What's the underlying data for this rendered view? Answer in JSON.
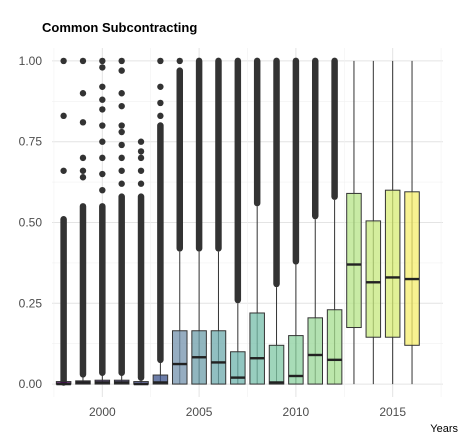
{
  "chart_data": {
    "type": "boxplot",
    "title": "Common Subcontracting",
    "xlabel": "Years",
    "ylabel": "",
    "xlim": [
      1997.4,
      2017.6
    ],
    "ylim": [
      -0.04,
      1.04
    ],
    "x_ticks": [
      2000,
      2005,
      2010,
      2015
    ],
    "y_ticks": [
      0.0,
      0.25,
      0.5,
      0.75,
      1.0
    ],
    "y_tick_labels": [
      "0.00",
      "0.25",
      "0.50",
      "0.75",
      "1.00"
    ],
    "grid": true,
    "legend": "none",
    "box_border_color": "#333333",
    "boxes": [
      {
        "x": 1998,
        "q1": 0.0,
        "median": 0.0,
        "q3": 0.0,
        "whisker_low": 0.0,
        "whisker_high": 0.0,
        "fill": "#440154",
        "outlier_dense": [
          0.005,
          0.51
        ],
        "outliers": [
          0.66,
          0.83,
          1.0
        ]
      },
      {
        "x": 1999,
        "q1": 0.0,
        "median": 0.005,
        "q3": 0.01,
        "whisker_low": 0.0,
        "whisker_high": 0.025,
        "fill": "#46136a",
        "outlier_dense": [
          0.03,
          0.55
        ],
        "outliers": [
          0.64,
          0.66,
          0.7,
          0.81,
          0.9,
          1.0
        ]
      },
      {
        "x": 2000,
        "q1": 0.0,
        "median": 0.005,
        "q3": 0.012,
        "whisker_low": 0.0,
        "whisker_high": 0.03,
        "fill": "#472878",
        "outlier_dense": [
          0.035,
          0.55
        ],
        "outliers": [
          0.6,
          0.65,
          0.7,
          0.75,
          0.8,
          0.85,
          0.88,
          0.92,
          0.98,
          1.0
        ]
      },
      {
        "x": 2001,
        "q1": 0.0,
        "median": 0.005,
        "q3": 0.012,
        "whisker_low": 0.0,
        "whisker_high": 0.03,
        "fill": "#433880",
        "outlier_dense": [
          0.035,
          0.58
        ],
        "outliers": [
          0.62,
          0.66,
          0.7,
          0.74,
          0.78,
          0.8,
          0.86,
          0.9,
          0.97,
          1.0
        ]
      },
      {
        "x": 2002,
        "q1": 0.0,
        "median": 0.0,
        "q3": 0.005,
        "whisker_low": 0.0,
        "whisker_high": 0.015,
        "fill": "#3f4787",
        "outlier_dense": [
          0.02,
          0.58
        ],
        "outliers": [
          0.62,
          0.66,
          0.7,
          0.72,
          0.75
        ]
      },
      {
        "x": 2003,
        "q1": 0.0,
        "median": 0.005,
        "q3": 0.028,
        "whisker_low": 0.0,
        "whisker_high": 0.07,
        "fill": "#3b528b",
        "outlier_dense": [
          0.075,
          0.8
        ],
        "outliers": [
          0.83,
          0.87,
          0.92,
          1.0
        ]
      },
      {
        "x": 2004,
        "q1": 0.0,
        "median": 0.062,
        "q3": 0.165,
        "whisker_low": 0.0,
        "whisker_high": 0.41,
        "fill": "#7392ac",
        "outlier_dense": [
          0.42,
          0.97
        ],
        "outliers": [
          1.0
        ]
      },
      {
        "x": 2005,
        "q1": 0.0,
        "median": 0.083,
        "q3": 0.165,
        "whisker_low": 0.0,
        "whisker_high": 0.41,
        "fill": "#6c9eaa",
        "outlier_dense": [
          0.42,
          1.0
        ],
        "outliers": []
      },
      {
        "x": 2006,
        "q1": 0.0,
        "median": 0.067,
        "q3": 0.165,
        "whisker_low": 0.0,
        "whisker_high": 0.41,
        "fill": "#6ca9ac",
        "outlier_dense": [
          0.42,
          1.0
        ],
        "outliers": []
      },
      {
        "x": 2007,
        "q1": 0.0,
        "median": 0.02,
        "q3": 0.1,
        "whisker_low": 0.0,
        "whisker_high": 0.25,
        "fill": "#6eb3ac",
        "outlier_dense": [
          0.26,
          1.0
        ],
        "outliers": []
      },
      {
        "x": 2008,
        "q1": 0.0,
        "median": 0.08,
        "q3": 0.22,
        "whisker_low": 0.0,
        "whisker_high": 0.55,
        "fill": "#76bea9",
        "outlier_dense": [
          0.56,
          1.0
        ],
        "outliers": []
      },
      {
        "x": 2009,
        "q1": 0.0,
        "median": 0.005,
        "q3": 0.12,
        "whisker_low": 0.0,
        "whisker_high": 0.3,
        "fill": "#7fc7a4",
        "outlier_dense": [
          0.31,
          1.0
        ],
        "outliers": []
      },
      {
        "x": 2010,
        "q1": 0.0,
        "median": 0.025,
        "q3": 0.15,
        "whisker_low": 0.0,
        "whisker_high": 0.37,
        "fill": "#8bd09f",
        "outlier_dense": [
          0.38,
          1.0
        ],
        "outliers": []
      },
      {
        "x": 2011,
        "q1": 0.0,
        "median": 0.09,
        "q3": 0.205,
        "whisker_low": 0.0,
        "whisker_high": 0.51,
        "fill": "#98d797",
        "outlier_dense": [
          0.52,
          1.0
        ],
        "outliers": []
      },
      {
        "x": 2012,
        "q1": 0.0,
        "median": 0.075,
        "q3": 0.23,
        "whisker_low": 0.0,
        "whisker_high": 0.57,
        "fill": "#a6df8f",
        "outlier_dense": [
          0.58,
          1.0
        ],
        "outliers": []
      },
      {
        "x": 2013,
        "q1": 0.175,
        "median": 0.37,
        "q3": 0.59,
        "whisker_low": 0.0,
        "whisker_high": 1.0,
        "fill": "#b6e487",
        "outlier_dense": null,
        "outliers": []
      },
      {
        "x": 2014,
        "q1": 0.145,
        "median": 0.315,
        "q3": 0.505,
        "whisker_low": 0.0,
        "whisker_high": 1.0,
        "fill": "#c6e87d",
        "outlier_dense": null,
        "outliers": []
      },
      {
        "x": 2015,
        "q1": 0.145,
        "median": 0.33,
        "q3": 0.6,
        "whisker_low": 0.0,
        "whisker_high": 1.0,
        "fill": "#d8ec74",
        "outlier_dense": null,
        "outliers": []
      },
      {
        "x": 2016,
        "q1": 0.12,
        "median": 0.325,
        "q3": 0.595,
        "whisker_low": 0.0,
        "whisker_high": 1.0,
        "fill": "#f5ee6c",
        "outlier_dense": null,
        "outliers": []
      }
    ]
  }
}
